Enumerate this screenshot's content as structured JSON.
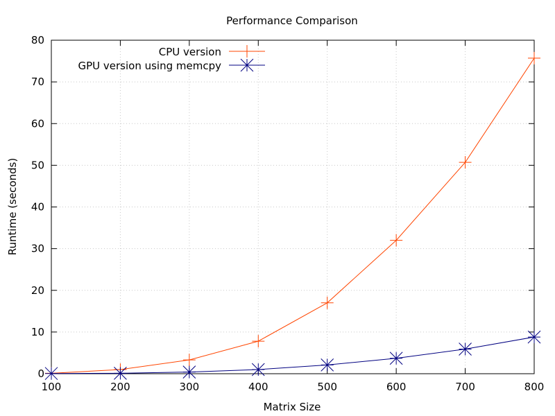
{
  "chart_data": {
    "type": "line",
    "title": "Performance Comparison",
    "xlabel": "Matrix Size",
    "ylabel": "Runtime (seconds)",
    "xlim": [
      100,
      800
    ],
    "ylim": [
      0,
      80
    ],
    "xticks": [
      100,
      200,
      300,
      400,
      500,
      600,
      700,
      800
    ],
    "yticks": [
      0,
      10,
      20,
      30,
      40,
      50,
      60,
      70,
      80
    ],
    "grid": true,
    "legend_position": "top-left",
    "x": [
      100,
      200,
      300,
      400,
      500,
      600,
      700,
      800
    ],
    "series": [
      {
        "name": "CPU version",
        "marker": "plus",
        "color": "#ff4500",
        "values": [
          0.1,
          1.0,
          3.3,
          7.8,
          17.0,
          32.0,
          50.7,
          75.7
        ]
      },
      {
        "name": "GPU version using memcpy",
        "marker": "star",
        "color": "#000080",
        "values": [
          0.05,
          0.1,
          0.4,
          1.0,
          2.1,
          3.7,
          5.9,
          8.8
        ]
      }
    ]
  }
}
